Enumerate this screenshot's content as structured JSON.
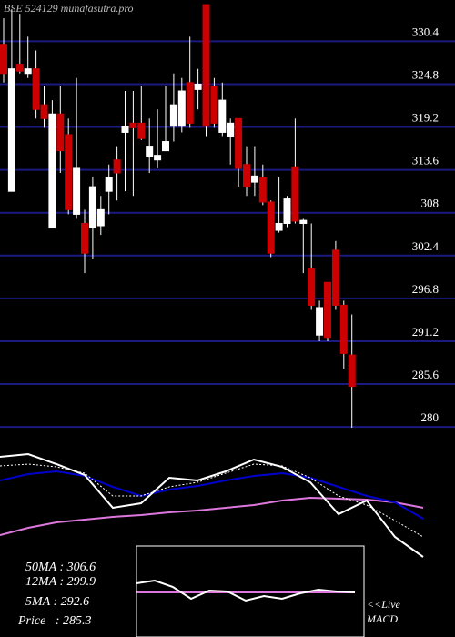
{
  "chart_data": [
    {
      "type": "candlestick",
      "title": "BSE 524129 munafasutra.pro",
      "open": [
        330.0,
        310.8,
        327.4,
        326.2,
        326.8,
        322.1,
        306.0,
        320.9,
        318.2,
        307.8,
        306.6,
        306.0,
        306.3,
        310.8,
        314.9,
        318.5,
        319.7,
        319.7,
        315.3,
        314.9,
        316.1,
        319.3,
        319.3,
        325.0,
        324.1,
        335.2,
        324.5,
        318.5,
        317.9,
        320.3,
        314.3,
        312.0,
        312.6,
        309.4,
        305.7,
        306.6,
        314.0,
        306.6,
        300.7,
        292.0,
        298.9,
        303.1,
        295.9,
        289.4
      ],
      "high": [
        333.4,
        334.6,
        334.0,
        331.0,
        329.2,
        324.5,
        322.7,
        324.5,
        320.3,
        325.6,
        308.4,
        312.6,
        310.2,
        314.3,
        316.7,
        323.9,
        323.9,
        324.5,
        320.3,
        321.5,
        324.5,
        326.2,
        325.6,
        331.0,
        326.8,
        335.2,
        325.6,
        325.0,
        320.3,
        320.3,
        316.7,
        316.7,
        314.3,
        309.6,
        312.6,
        310.2,
        320.3,
        307.2,
        306.6,
        296.5,
        298.9,
        304.3,
        296.5,
        294.7
      ],
      "low": [
        325.0,
        310.8,
        326.2,
        325.6,
        320.3,
        319.1,
        306.0,
        313.2,
        307.8,
        307.2,
        300.1,
        301.9,
        305.1,
        307.8,
        309.6,
        310.8,
        310.2,
        317.5,
        313.2,
        313.8,
        316.1,
        317.3,
        318.5,
        319.1,
        321.5,
        317.9,
        319.1,
        317.9,
        314.3,
        311.4,
        310.2,
        310.2,
        309.0,
        302.2,
        305.4,
        306.0,
        306.6,
        300.1,
        295.3,
        291.2,
        291.2,
        295.3,
        287.6,
        279.9
      ],
      "close": [
        326.2,
        326.8,
        326.5,
        326.8,
        321.5,
        320.3,
        320.9,
        316.1,
        308.4,
        313.8,
        302.7,
        311.4,
        308.4,
        312.6,
        313.2,
        319.3,
        319.1,
        317.7,
        316.7,
        315.5,
        317.3,
        322.1,
        323.9,
        319.7,
        324.8,
        319.3,
        319.7,
        322.7,
        319.7,
        313.8,
        311.4,
        312.8,
        309.4,
        302.7,
        306.6,
        309.8,
        306.9,
        307.0,
        295.9,
        295.6,
        291.7,
        295.9,
        289.6,
        285.3
      ],
      "up_color": "#ffffff",
      "down_color": "#cc0000",
      "grid_color": "#1a1a80",
      "ylim": [
        279.3,
        335.8
      ],
      "yticks": [
        330.4,
        324.8,
        319.2,
        313.6,
        308,
        302.4,
        296.8,
        291.2,
        285.6,
        280
      ],
      "grid": true,
      "annotations": [
        "50MA : 306.6",
        "12MA : 299.9",
        "5MA : 292.6",
        "Price   : 285.3",
        "<<Live",
        "MACD"
      ]
    },
    {
      "type": "line",
      "ylim": [
        0,
        140
      ],
      "series": [
        {
          "color": "#dd77dd",
          "values": [
            32,
            40,
            46,
            49,
            52,
            54,
            57,
            59,
            62,
            65,
            70,
            73,
            72,
            71,
            68,
            62
          ]
        },
        {
          "color": "#0000cc",
          "values": [
            92,
            99,
            102,
            97,
            85,
            75,
            82,
            86,
            92,
            97,
            100,
            95,
            85,
            75,
            68,
            50
          ]
        },
        {
          "color": "#ffffff",
          "dash": true,
          "values": [
            108,
            110,
            107,
            100,
            75,
            75,
            85,
            90,
            100,
            110,
            108,
            95,
            75,
            65,
            48,
            30
          ]
        },
        {
          "color": "#ffffff",
          "values": [
            118,
            121,
            110,
            98,
            62,
            67,
            95,
            92,
            102,
            115,
            107,
            90,
            55,
            70,
            30,
            8
          ]
        }
      ]
    },
    {
      "type": "line",
      "ylim": [
        -40,
        40
      ],
      "series": [
        {
          "color": "#dd77dd",
          "values": [
            0,
            0,
            0,
            0,
            0,
            0,
            0,
            0,
            0,
            0,
            0,
            0,
            0
          ]
        },
        {
          "color": "#ffffff",
          "values": [
            10,
            13,
            6,
            -7,
            2,
            1,
            -9,
            -4,
            -7,
            -1,
            3,
            1,
            0
          ]
        }
      ]
    }
  ]
}
